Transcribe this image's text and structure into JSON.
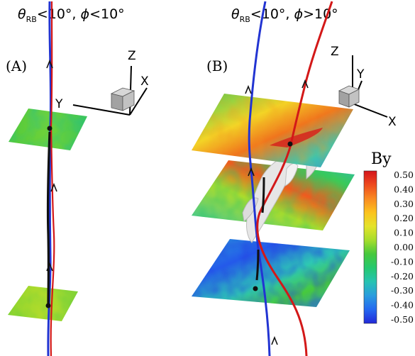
{
  "panels": [
    {
      "label": "(A)",
      "title": {
        "theta": "θ",
        "sub": "RB",
        "rest": "<10°,  ",
        "phi": "ϕ",
        "phi_cond": "<10°"
      },
      "axes": {
        "z": "Z",
        "x": "X",
        "y": "Y"
      }
    },
    {
      "label": "(B)",
      "title": {
        "theta": "θ",
        "sub": "RB",
        "rest": "<10°,  ",
        "phi": "ϕ",
        "phi_cond": ">10°"
      },
      "axes": {
        "z": "Z",
        "x": "X",
        "y": "Y"
      }
    }
  ],
  "colorbar": {
    "title": "By",
    "ticks": [
      "0.50",
      "0.40",
      "0.30",
      "0.20",
      "0.10",
      "0.00",
      "-0.10",
      "-0.20",
      "-0.30",
      "-0.40",
      "-0.50"
    ],
    "colors": [
      "#d4141c",
      "#ee4a1e",
      "#f98a22",
      "#fcc31d",
      "#e4e32a",
      "#a5dd2c",
      "#46c83c",
      "#25c86f",
      "#27c3b2",
      "#2a9cde",
      "#2468f0",
      "#2228d8"
    ]
  },
  "colors": {
    "field_line_red": "#d31818",
    "field_line_blue": "#2234d2",
    "field_line_black": "#111111",
    "isosurface": "#e6e6e6"
  }
}
